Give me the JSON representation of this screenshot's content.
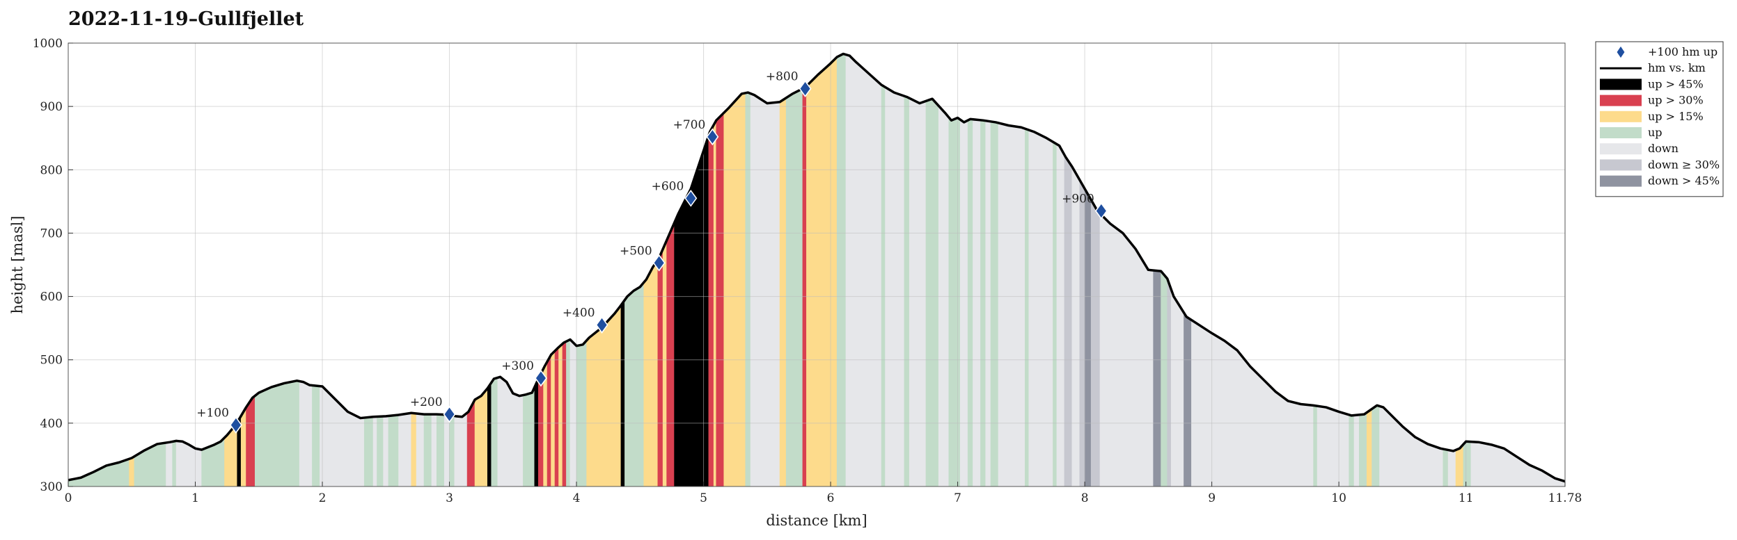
{
  "chart_data": {
    "type": "area",
    "title": "2022-11-19–Gullfjellet",
    "xlabel": "distance [km]",
    "ylabel": "height [masl]",
    "xlim": [
      0,
      11.78
    ],
    "ylim": [
      300,
      1000
    ],
    "xticks": [
      0,
      1,
      2,
      3,
      4,
      5,
      6,
      7,
      8,
      9,
      10,
      11,
      11.78
    ],
    "xtick_labels": [
      "0",
      "1",
      "2",
      "3",
      "4",
      "5",
      "6",
      "7",
      "8",
      "9",
      "10",
      "11",
      "11.78"
    ],
    "yticks": [
      300,
      400,
      500,
      600,
      700,
      800,
      900,
      1000
    ],
    "ytick_labels": [
      "300",
      "400",
      "500",
      "600",
      "700",
      "800",
      "900",
      "1000"
    ],
    "grid": true,
    "legend_position": "outside-top-right",
    "colors": {
      "line": "#000000",
      "marker": "#1f4fa0",
      "up45": "#000000",
      "up30": "#d94050",
      "up15": "#fddb8c",
      "up": "#c2dcc9",
      "down": "#e6e7ea",
      "down30": "#c7c8d0",
      "down45": "#8f93a0"
    },
    "legend": [
      {
        "key": "marker",
        "label": "+100 hm up"
      },
      {
        "key": "line",
        "label": "hm vs. km"
      },
      {
        "key": "up45",
        "label": "up > 45%"
      },
      {
        "key": "up30",
        "label": "up > 30%"
      },
      {
        "key": "up15",
        "label": "up > 15%"
      },
      {
        "key": "up",
        "label": "up"
      },
      {
        "key": "down",
        "label": "down"
      },
      {
        "key": "down30",
        "label": "down ≥ 30%"
      },
      {
        "key": "down45",
        "label": "down > 45%"
      }
    ],
    "profile": {
      "x": [
        0,
        0.05,
        0.1,
        0.2,
        0.3,
        0.4,
        0.5,
        0.6,
        0.7,
        0.8,
        0.85,
        0.9,
        0.95,
        1.0,
        1.05,
        1.1,
        1.15,
        1.2,
        1.25,
        1.3,
        1.35,
        1.4,
        1.45,
        1.5,
        1.6,
        1.7,
        1.8,
        1.85,
        1.9,
        2.0,
        2.1,
        2.2,
        2.3,
        2.4,
        2.5,
        2.6,
        2.7,
        2.8,
        2.9,
        3.0,
        3.05,
        3.1,
        3.15,
        3.2,
        3.25,
        3.3,
        3.35,
        3.4,
        3.45,
        3.5,
        3.55,
        3.6,
        3.65,
        3.7,
        3.75,
        3.8,
        3.85,
        3.9,
        3.95,
        4.0,
        4.05,
        4.1,
        4.2,
        4.3,
        4.35,
        4.4,
        4.45,
        4.5,
        4.55,
        4.6,
        4.65,
        4.7,
        4.8,
        4.9,
        5.0,
        5.05,
        5.1,
        5.2,
        5.3,
        5.35,
        5.4,
        5.5,
        5.6,
        5.7,
        5.8,
        5.9,
        6.0,
        6.05,
        6.1,
        6.15,
        6.2,
        6.3,
        6.4,
        6.5,
        6.6,
        6.7,
        6.8,
        6.9,
        6.95,
        7.0,
        7.05,
        7.1,
        7.2,
        7.3,
        7.4,
        7.5,
        7.6,
        7.7,
        7.8,
        7.85,
        7.9,
        8.0,
        8.1,
        8.2,
        8.3,
        8.4,
        8.5,
        8.6,
        8.65,
        8.7,
        8.8,
        8.9,
        9.0,
        9.1,
        9.2,
        9.3,
        9.4,
        9.5,
        9.6,
        9.7,
        9.8,
        9.9,
        10.0,
        10.1,
        10.2,
        10.3,
        10.35,
        10.4,
        10.5,
        10.6,
        10.7,
        10.8,
        10.9,
        10.95,
        11.0,
        11.1,
        11.2,
        11.3,
        11.4,
        11.5,
        11.6,
        11.7,
        11.78
      ],
      "y": [
        310,
        312,
        314,
        323,
        333,
        338,
        345,
        357,
        367,
        370,
        372,
        371,
        366,
        360,
        358,
        362,
        366,
        371,
        381,
        393,
        408,
        425,
        440,
        448,
        457,
        463,
        467,
        465,
        460,
        458,
        438,
        418,
        408,
        410,
        411,
        413,
        416,
        414,
        414,
        413,
        411,
        410,
        418,
        437,
        443,
        455,
        470,
        473,
        465,
        447,
        443,
        445,
        448,
        470,
        490,
        508,
        518,
        527,
        532,
        522,
        524,
        535,
        551,
        573,
        586,
        600,
        609,
        615,
        627,
        646,
        661,
        684,
        730,
        770,
        830,
        860,
        878,
        898,
        920,
        922,
        918,
        905,
        907,
        920,
        930,
        950,
        968,
        978,
        983,
        980,
        970,
        952,
        934,
        922,
        915,
        905,
        912,
        890,
        878,
        882,
        875,
        880,
        878,
        875,
        870,
        867,
        860,
        850,
        838,
        820,
        805,
        770,
        735,
        715,
        700,
        675,
        642,
        640,
        628,
        600,
        568,
        555,
        542,
        530,
        515,
        490,
        470,
        450,
        435,
        430,
        428,
        425,
        418,
        412,
        414,
        428,
        425,
        415,
        395,
        378,
        367,
        360,
        356,
        360,
        371,
        370,
        366,
        360,
        347,
        334,
        325,
        313,
        308
      ]
    },
    "segments": [
      {
        "from": 0.0,
        "to": 0.48,
        "cls": "up"
      },
      {
        "from": 0.48,
        "to": 0.52,
        "cls": "up15"
      },
      {
        "from": 0.52,
        "to": 0.77,
        "cls": "up"
      },
      {
        "from": 0.77,
        "to": 0.82,
        "cls": "down"
      },
      {
        "from": 0.82,
        "to": 0.85,
        "cls": "up"
      },
      {
        "from": 0.85,
        "to": 1.05,
        "cls": "down"
      },
      {
        "from": 1.05,
        "to": 1.23,
        "cls": "up"
      },
      {
        "from": 1.23,
        "to": 1.33,
        "cls": "up15"
      },
      {
        "from": 1.33,
        "to": 1.36,
        "cls": "up45"
      },
      {
        "from": 1.36,
        "to": 1.4,
        "cls": "up15"
      },
      {
        "from": 1.4,
        "to": 1.47,
        "cls": "up30"
      },
      {
        "from": 1.47,
        "to": 1.82,
        "cls": "up"
      },
      {
        "from": 1.82,
        "to": 1.92,
        "cls": "down"
      },
      {
        "from": 1.92,
        "to": 1.98,
        "cls": "up"
      },
      {
        "from": 1.98,
        "to": 2.33,
        "cls": "down"
      },
      {
        "from": 2.33,
        "to": 2.4,
        "cls": "up"
      },
      {
        "from": 2.4,
        "to": 2.43,
        "cls": "down"
      },
      {
        "from": 2.43,
        "to": 2.48,
        "cls": "up"
      },
      {
        "from": 2.48,
        "to": 2.52,
        "cls": "down"
      },
      {
        "from": 2.52,
        "to": 2.6,
        "cls": "up"
      },
      {
        "from": 2.6,
        "to": 2.7,
        "cls": "down"
      },
      {
        "from": 2.7,
        "to": 2.74,
        "cls": "up15"
      },
      {
        "from": 2.74,
        "to": 2.8,
        "cls": "down"
      },
      {
        "from": 2.8,
        "to": 2.86,
        "cls": "up"
      },
      {
        "from": 2.86,
        "to": 2.9,
        "cls": "down"
      },
      {
        "from": 2.9,
        "to": 2.96,
        "cls": "up"
      },
      {
        "from": 2.96,
        "to": 3.0,
        "cls": "down"
      },
      {
        "from": 3.0,
        "to": 3.04,
        "cls": "up"
      },
      {
        "from": 3.04,
        "to": 3.14,
        "cls": "down"
      },
      {
        "from": 3.14,
        "to": 3.2,
        "cls": "up30"
      },
      {
        "from": 3.2,
        "to": 3.3,
        "cls": "up15"
      },
      {
        "from": 3.3,
        "to": 3.33,
        "cls": "up45"
      },
      {
        "from": 3.33,
        "to": 3.38,
        "cls": "up"
      },
      {
        "from": 3.38,
        "to": 3.58,
        "cls": "down"
      },
      {
        "from": 3.58,
        "to": 3.67,
        "cls": "up"
      },
      {
        "from": 3.67,
        "to": 3.7,
        "cls": "up45"
      },
      {
        "from": 3.7,
        "to": 3.74,
        "cls": "up30"
      },
      {
        "from": 3.74,
        "to": 3.77,
        "cls": "up15"
      },
      {
        "from": 3.77,
        "to": 3.8,
        "cls": "up30"
      },
      {
        "from": 3.8,
        "to": 3.83,
        "cls": "up15"
      },
      {
        "from": 3.83,
        "to": 3.86,
        "cls": "up30"
      },
      {
        "from": 3.86,
        "to": 3.89,
        "cls": "up15"
      },
      {
        "from": 3.89,
        "to": 3.92,
        "cls": "up30"
      },
      {
        "from": 3.92,
        "to": 3.95,
        "cls": "up"
      },
      {
        "from": 3.95,
        "to": 4.0,
        "cls": "down"
      },
      {
        "from": 4.0,
        "to": 4.08,
        "cls": "up"
      },
      {
        "from": 4.08,
        "to": 4.35,
        "cls": "up15"
      },
      {
        "from": 4.35,
        "to": 4.38,
        "cls": "up45"
      },
      {
        "from": 4.38,
        "to": 4.53,
        "cls": "up"
      },
      {
        "from": 4.53,
        "to": 4.64,
        "cls": "up15"
      },
      {
        "from": 4.64,
        "to": 4.68,
        "cls": "up30"
      },
      {
        "from": 4.68,
        "to": 4.71,
        "cls": "up15"
      },
      {
        "from": 4.71,
        "to": 4.77,
        "cls": "up30"
      },
      {
        "from": 4.77,
        "to": 5.04,
        "cls": "up45"
      },
      {
        "from": 5.04,
        "to": 5.08,
        "cls": "up30"
      },
      {
        "from": 5.08,
        "to": 5.1,
        "cls": "up15"
      },
      {
        "from": 5.1,
        "to": 5.16,
        "cls": "up30"
      },
      {
        "from": 5.16,
        "to": 5.33,
        "cls": "up15"
      },
      {
        "from": 5.33,
        "to": 5.37,
        "cls": "up"
      },
      {
        "from": 5.37,
        "to": 5.6,
        "cls": "down"
      },
      {
        "from": 5.6,
        "to": 5.65,
        "cls": "up15"
      },
      {
        "from": 5.65,
        "to": 5.78,
        "cls": "up"
      },
      {
        "from": 5.78,
        "to": 5.81,
        "cls": "up30"
      },
      {
        "from": 5.81,
        "to": 6.05,
        "cls": "up15"
      },
      {
        "from": 6.05,
        "to": 6.12,
        "cls": "up"
      },
      {
        "from": 6.12,
        "to": 6.4,
        "cls": "down"
      },
      {
        "from": 6.4,
        "to": 6.43,
        "cls": "up"
      },
      {
        "from": 6.43,
        "to": 6.58,
        "cls": "down"
      },
      {
        "from": 6.58,
        "to": 6.62,
        "cls": "up"
      },
      {
        "from": 6.62,
        "to": 6.75,
        "cls": "down"
      },
      {
        "from": 6.75,
        "to": 6.85,
        "cls": "up"
      },
      {
        "from": 6.85,
        "to": 6.93,
        "cls": "down"
      },
      {
        "from": 6.93,
        "to": 7.02,
        "cls": "up"
      },
      {
        "from": 7.02,
        "to": 7.08,
        "cls": "down"
      },
      {
        "from": 7.08,
        "to": 7.12,
        "cls": "up"
      },
      {
        "from": 7.12,
        "to": 7.18,
        "cls": "down"
      },
      {
        "from": 7.18,
        "to": 7.22,
        "cls": "up"
      },
      {
        "from": 7.22,
        "to": 7.26,
        "cls": "down"
      },
      {
        "from": 7.26,
        "to": 7.32,
        "cls": "up"
      },
      {
        "from": 7.32,
        "to": 7.53,
        "cls": "down"
      },
      {
        "from": 7.53,
        "to": 7.56,
        "cls": "up"
      },
      {
        "from": 7.56,
        "to": 7.75,
        "cls": "down"
      },
      {
        "from": 7.75,
        "to": 7.78,
        "cls": "up"
      },
      {
        "from": 7.78,
        "to": 7.84,
        "cls": "down"
      },
      {
        "from": 7.84,
        "to": 7.9,
        "cls": "down30"
      },
      {
        "from": 7.9,
        "to": 7.96,
        "cls": "down"
      },
      {
        "from": 7.96,
        "to": 8.0,
        "cls": "down30"
      },
      {
        "from": 8.0,
        "to": 8.05,
        "cls": "down45"
      },
      {
        "from": 8.05,
        "to": 8.12,
        "cls": "down30"
      },
      {
        "from": 8.12,
        "to": 8.54,
        "cls": "down"
      },
      {
        "from": 8.54,
        "to": 8.6,
        "cls": "down45"
      },
      {
        "from": 8.6,
        "to": 8.65,
        "cls": "up"
      },
      {
        "from": 8.65,
        "to": 8.68,
        "cls": "down30"
      },
      {
        "from": 8.68,
        "to": 8.78,
        "cls": "down"
      },
      {
        "from": 8.78,
        "to": 8.84,
        "cls": "down45"
      },
      {
        "from": 8.84,
        "to": 9.8,
        "cls": "down"
      },
      {
        "from": 9.8,
        "to": 9.83,
        "cls": "up"
      },
      {
        "from": 9.83,
        "to": 10.08,
        "cls": "down"
      },
      {
        "from": 10.08,
        "to": 10.12,
        "cls": "up"
      },
      {
        "from": 10.12,
        "to": 10.16,
        "cls": "down"
      },
      {
        "from": 10.16,
        "to": 10.22,
        "cls": "up"
      },
      {
        "from": 10.22,
        "to": 10.26,
        "cls": "up15"
      },
      {
        "from": 10.26,
        "to": 10.32,
        "cls": "up"
      },
      {
        "from": 10.32,
        "to": 10.82,
        "cls": "down"
      },
      {
        "from": 10.82,
        "to": 10.86,
        "cls": "up"
      },
      {
        "from": 10.86,
        "to": 10.92,
        "cls": "down"
      },
      {
        "from": 10.92,
        "to": 10.98,
        "cls": "up15"
      },
      {
        "from": 10.98,
        "to": 11.04,
        "cls": "up"
      },
      {
        "from": 11.04,
        "to": 11.78,
        "cls": "down"
      }
    ],
    "markers": [
      {
        "x": 1.32,
        "y": 397,
        "label": "+100"
      },
      {
        "x": 3.0,
        "y": 414,
        "label": "+200"
      },
      {
        "x": 3.72,
        "y": 471,
        "label": "+300"
      },
      {
        "x": 4.2,
        "y": 555,
        "label": "+400"
      },
      {
        "x": 4.65,
        "y": 653,
        "label": "+500"
      },
      {
        "x": 4.9,
        "y": 755,
        "label": "+600"
      },
      {
        "x": 5.07,
        "y": 852,
        "label": "+700"
      },
      {
        "x": 5.8,
        "y": 928,
        "label": "+800"
      },
      {
        "x": 8.13,
        "y": 735,
        "label": "+900"
      }
    ]
  }
}
